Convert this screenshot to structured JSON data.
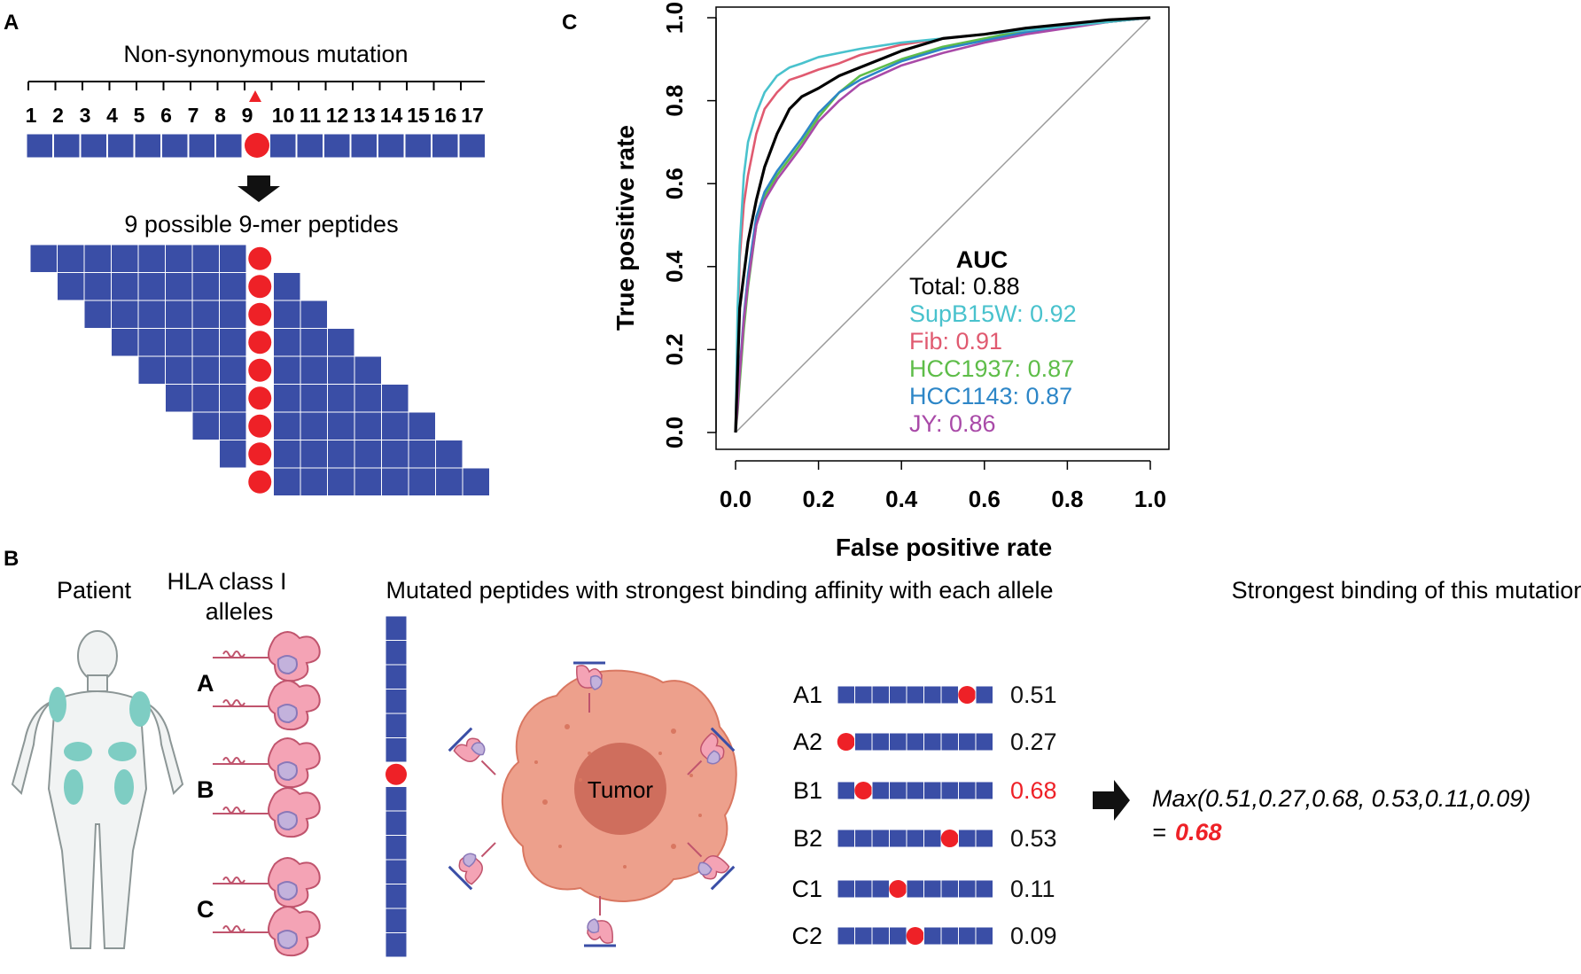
{
  "panels": {
    "a": {
      "letter": "A",
      "title": "Non-synonymous mutation",
      "positions": [
        "1",
        "2",
        "3",
        "4",
        "5",
        "6",
        "7",
        "8",
        "9",
        "10",
        "11",
        "12",
        "13",
        "14",
        "15",
        "16",
        "17"
      ],
      "mutation_position": 9,
      "subtitle": "9 possible 9-mer peptides",
      "peptide_count": 9
    },
    "b": {
      "letter": "B",
      "patient_label": "Patient",
      "hla_label_line1": "HLA class I",
      "hla_label_line2": "alleles",
      "allele_groups": [
        "A",
        "B",
        "C"
      ],
      "peptides_heading": "Mutated peptides with strongest binding affinity with each allele",
      "tumor_label": "Tumor",
      "binding_heading": "Strongest binding of this mutation",
      "alleles": [
        {
          "name": "A1",
          "value": "0.51",
          "highlight": false
        },
        {
          "name": "A2",
          "value": "0.27",
          "highlight": false
        },
        {
          "name": "B1",
          "value": "0.68",
          "highlight": true
        },
        {
          "name": "B2",
          "value": "0.53",
          "highlight": false
        },
        {
          "name": "C1",
          "value": "0.11",
          "highlight": false
        },
        {
          "name": "C2",
          "value": "0.09",
          "highlight": false
        }
      ],
      "max_expression": "Max(0.51,0.27,0.68, 0.53,0.11,0.09)",
      "equals_sign": "=",
      "max_result": "0.68"
    }
  },
  "colors": {
    "peptide_blue": "#3a4ea6",
    "mutation_red": "#ee2127",
    "molecule_pink": "#f4a3b5",
    "molecule_purple": "#c3b2dc",
    "tumor_outer": "#eda08c",
    "tumor_inner": "#cf6e5d",
    "patient_patch": "#7ecdc3"
  },
  "chart_data": {
    "type": "line",
    "panel_letter": "C",
    "title": "",
    "xlabel": "False positive rate",
    "ylabel": "True positive rate",
    "xlim": [
      0,
      1
    ],
    "ylim": [
      0,
      1
    ],
    "xticks": [
      "0.0",
      "0.2",
      "0.4",
      "0.6",
      "0.8",
      "1.0"
    ],
    "yticks": [
      "0.0",
      "0.2",
      "0.4",
      "0.6",
      "0.8",
      "1.0"
    ],
    "legend_title": "AUC",
    "legend_position": "bottom-right",
    "series": [
      {
        "name": "Total",
        "legend": "Total: 0.88",
        "auc": 0.88,
        "color": "#000000",
        "x": [
          0,
          0.005,
          0.01,
          0.02,
          0.03,
          0.05,
          0.07,
          0.1,
          0.13,
          0.16,
          0.2,
          0.25,
          0.3,
          0.4,
          0.5,
          0.6,
          0.7,
          0.8,
          0.9,
          1.0
        ],
        "y": [
          0,
          0.15,
          0.3,
          0.38,
          0.46,
          0.56,
          0.64,
          0.72,
          0.78,
          0.81,
          0.83,
          0.86,
          0.88,
          0.92,
          0.95,
          0.96,
          0.975,
          0.985,
          0.995,
          1.0
        ]
      },
      {
        "name": "SupB15W",
        "legend": "SupB15W: 0.92",
        "auc": 0.92,
        "color": "#49c2cd",
        "x": [
          0,
          0.005,
          0.01,
          0.02,
          0.03,
          0.05,
          0.07,
          0.1,
          0.13,
          0.16,
          0.2,
          0.25,
          0.3,
          0.4,
          0.5,
          0.6,
          0.7,
          0.8,
          0.9,
          1.0
        ],
        "y": [
          0,
          0.3,
          0.45,
          0.62,
          0.7,
          0.77,
          0.82,
          0.86,
          0.88,
          0.89,
          0.905,
          0.915,
          0.925,
          0.94,
          0.95,
          0.96,
          0.97,
          0.98,
          0.99,
          1.0
        ]
      },
      {
        "name": "Fib",
        "legend": "Fib: 0.91",
        "auc": 0.91,
        "color": "#e05a70",
        "x": [
          0,
          0.005,
          0.01,
          0.02,
          0.03,
          0.05,
          0.07,
          0.1,
          0.13,
          0.16,
          0.2,
          0.25,
          0.3,
          0.4,
          0.5,
          0.6,
          0.7,
          0.8,
          0.9,
          1.0
        ],
        "y": [
          0,
          0.25,
          0.42,
          0.55,
          0.62,
          0.72,
          0.78,
          0.82,
          0.85,
          0.86,
          0.875,
          0.89,
          0.91,
          0.935,
          0.95,
          0.96,
          0.97,
          0.98,
          0.99,
          1.0
        ]
      },
      {
        "name": "HCC1937",
        "legend": "HCC1937: 0.87",
        "auc": 0.87,
        "color": "#5ebd49",
        "x": [
          0,
          0.005,
          0.01,
          0.02,
          0.03,
          0.05,
          0.07,
          0.1,
          0.13,
          0.16,
          0.2,
          0.25,
          0.3,
          0.4,
          0.5,
          0.6,
          0.7,
          0.8,
          0.9,
          1.0
        ],
        "y": [
          0,
          0.05,
          0.12,
          0.25,
          0.35,
          0.5,
          0.57,
          0.62,
          0.66,
          0.7,
          0.76,
          0.82,
          0.86,
          0.9,
          0.93,
          0.95,
          0.97,
          0.98,
          0.99,
          1.0
        ]
      },
      {
        "name": "HCC1143",
        "legend": "HCC1143: 0.87",
        "auc": 0.87,
        "color": "#2d86c7",
        "x": [
          0,
          0.005,
          0.01,
          0.02,
          0.03,
          0.05,
          0.07,
          0.1,
          0.13,
          0.16,
          0.2,
          0.25,
          0.3,
          0.4,
          0.5,
          0.6,
          0.7,
          0.8,
          0.9,
          1.0
        ],
        "y": [
          0,
          0.08,
          0.15,
          0.28,
          0.38,
          0.52,
          0.58,
          0.63,
          0.67,
          0.71,
          0.77,
          0.82,
          0.85,
          0.895,
          0.925,
          0.945,
          0.965,
          0.98,
          0.99,
          1.0
        ]
      },
      {
        "name": "JY",
        "legend": "JY: 0.86",
        "auc": 0.86,
        "color": "#a94aa8",
        "x": [
          0,
          0.005,
          0.01,
          0.02,
          0.03,
          0.05,
          0.07,
          0.1,
          0.13,
          0.16,
          0.2,
          0.25,
          0.3,
          0.4,
          0.5,
          0.6,
          0.7,
          0.8,
          0.9,
          1.0
        ],
        "y": [
          0,
          0.06,
          0.14,
          0.27,
          0.36,
          0.5,
          0.56,
          0.61,
          0.65,
          0.69,
          0.75,
          0.8,
          0.84,
          0.885,
          0.915,
          0.94,
          0.96,
          0.975,
          0.99,
          1.0
        ]
      }
    ],
    "reference_line": {
      "x": [
        0,
        1
      ],
      "y": [
        0,
        1
      ],
      "color": "#9a9a9a"
    }
  }
}
